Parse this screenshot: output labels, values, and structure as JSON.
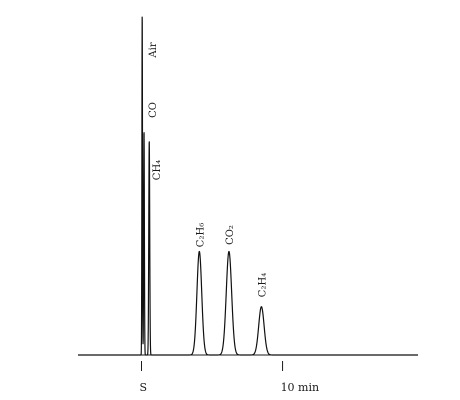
{
  "chart_data": {
    "type": "line",
    "title": "",
    "xlabel": "",
    "ylabel": "",
    "x_unit": "min",
    "x_ticks": [
      {
        "value": 0,
        "label": "S"
      },
      {
        "value": 10,
        "label": "10 min"
      }
    ],
    "peaks": [
      {
        "label": "Air",
        "retention": 0.05,
        "height": 0.99,
        "width": 0.05
      },
      {
        "label": "CO",
        "retention": 0.18,
        "height": 0.65,
        "width": 0.06
      },
      {
        "label": "CH₄",
        "retention": 0.55,
        "height": 0.62,
        "width": 0.08
      },
      {
        "label": "C₂H₆",
        "retention": 4.1,
        "height": 0.3,
        "width": 0.4
      },
      {
        "label": "CO₂",
        "retention": 6.2,
        "height": 0.3,
        "width": 0.45
      },
      {
        "label": "C₂H₄",
        "retention": 8.5,
        "height": 0.14,
        "width": 0.45
      }
    ],
    "xlim": [
      -4.5,
      19.6
    ],
    "ylim": [
      0,
      1.0
    ],
    "grid": false,
    "legend": "none"
  }
}
